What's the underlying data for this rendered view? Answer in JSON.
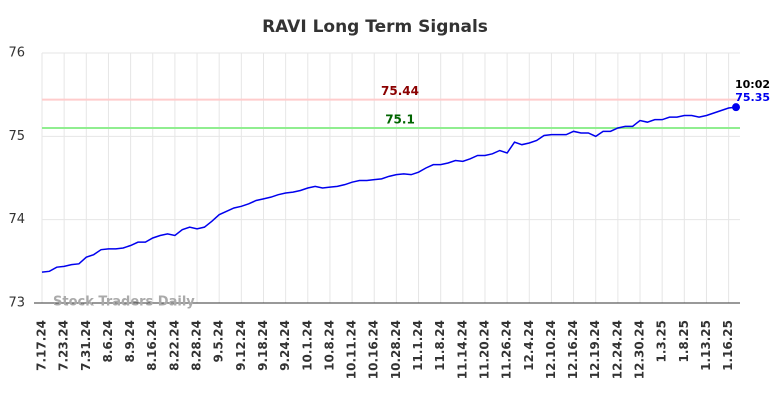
{
  "chart_data": {
    "type": "line",
    "title": "RAVI Long Term Signals",
    "watermark": "Stock Traders Daily",
    "categories": [
      "7.17.24",
      null,
      null,
      "7.23.24",
      null,
      null,
      "7.31.24",
      null,
      null,
      "8.6.24",
      null,
      null,
      "8.9.24",
      null,
      null,
      "8.16.24",
      null,
      null,
      "8.22.24",
      null,
      null,
      "8.28.24",
      null,
      null,
      "9.5.24",
      null,
      null,
      "9.12.24",
      null,
      null,
      "9.18.24",
      null,
      null,
      "9.24.24",
      null,
      null,
      "10.1.24",
      null,
      null,
      "10.8.24",
      null,
      null,
      "10.11.24",
      null,
      null,
      "10.16.24",
      null,
      null,
      "10.28.24",
      null,
      null,
      "11.1.24",
      null,
      null,
      "11.8.24",
      null,
      null,
      "11.14.24",
      null,
      null,
      "11.20.24",
      null,
      null,
      "11.26.24",
      null,
      null,
      "12.4.24",
      null,
      null,
      "12.10.24",
      null,
      null,
      "12.16.24",
      null,
      null,
      "12.19.24",
      null,
      null,
      "12.24.24",
      null,
      null,
      "12.30.24",
      null,
      null,
      "1.3.25",
      null,
      null,
      "1.8.25",
      null,
      null,
      "1.13.25",
      null,
      null,
      "1.16.25",
      null
    ],
    "series": [
      {
        "name": "RAVI",
        "color": "#0000ee",
        "values": [
          73.37,
          73.38,
          73.43,
          73.44,
          73.46,
          73.47,
          73.55,
          73.58,
          73.64,
          73.65,
          73.65,
          73.66,
          73.69,
          73.73,
          73.73,
          73.78,
          73.81,
          73.83,
          73.81,
          73.88,
          73.91,
          73.89,
          73.91,
          73.98,
          74.06,
          74.1,
          74.14,
          74.16,
          74.19,
          74.23,
          74.25,
          74.27,
          74.3,
          74.32,
          74.33,
          74.35,
          74.38,
          74.4,
          74.38,
          74.39,
          74.4,
          74.42,
          74.45,
          74.47,
          74.47,
          74.48,
          74.49,
          74.52,
          74.54,
          74.55,
          74.54,
          74.57,
          74.62,
          74.66,
          74.66,
          74.68,
          74.71,
          74.7,
          74.73,
          74.77,
          74.77,
          74.79,
          74.83,
          74.8,
          74.93,
          74.9,
          74.92,
          74.95,
          75.01,
          75.02,
          75.02,
          75.02,
          75.06,
          75.04,
          75.04,
          75.0,
          75.06,
          75.06,
          75.1,
          75.12,
          75.12,
          75.19,
          75.17,
          75.2,
          75.2,
          75.23,
          75.23,
          75.25,
          75.25,
          75.23,
          75.25,
          75.28,
          75.31,
          75.34,
          75.35
        ]
      }
    ],
    "hlines": [
      {
        "value": 75.44,
        "color": "#ffcccc",
        "label_color": "#8b0000"
      },
      {
        "value": 75.1,
        "color": "#90ee90",
        "label_color": "#006400"
      }
    ],
    "last_time": "10:02",
    "ylim": [
      73,
      76
    ],
    "yticks": [
      73,
      74,
      75,
      76
    ],
    "grid": true
  }
}
